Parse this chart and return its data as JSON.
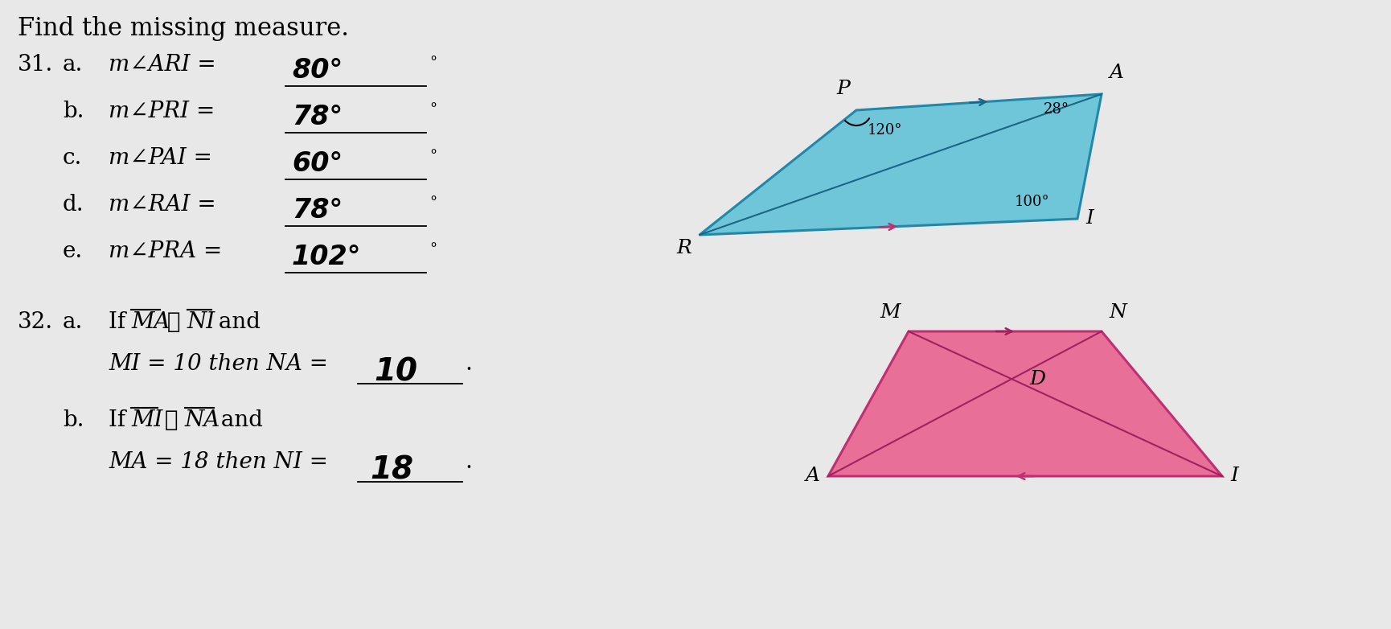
{
  "background_color": "#e8e8e8",
  "title": "Find the missing measure.",
  "title_fontsize": 22,
  "q31_parts": [
    {
      "letter": "a.",
      "text": "m∠ARI =",
      "answer": "80°"
    },
    {
      "letter": "b.",
      "text": "m∠PRI =",
      "answer": "78°"
    },
    {
      "letter": "c.",
      "text": "m∠PAI =",
      "answer": "60°"
    },
    {
      "letter": "d.",
      "text": "m∠RAI =",
      "answer": "78°"
    },
    {
      "letter": "e.",
      "text": "m∠PRA =",
      "answer": "102°"
    }
  ],
  "q32a_line1": "If ",
  "q32a_bar1": "MA",
  "q32a_cong": " ≅ ",
  "q32a_bar2": "NI",
  "q32a_line1_end": " and",
  "q32a_line2": "MI = 10 then NA = ",
  "q32a_answer": "10",
  "q32b_line1": "If ",
  "q32b_bar1": "MI",
  "q32b_cong": " ≅ ",
  "q32b_bar2": "NA",
  "q32b_line1_end": " and",
  "q32b_line2": "MA = 18 then NI = ",
  "q32b_answer": "18",
  "para_fill": "#6ec6d8",
  "para_edge": "#2288aa",
  "para_diag_color": "#1a6688",
  "trap_fill": "#e87098",
  "trap_edge": "#c03070",
  "trap_diag_color": "#a02060"
}
